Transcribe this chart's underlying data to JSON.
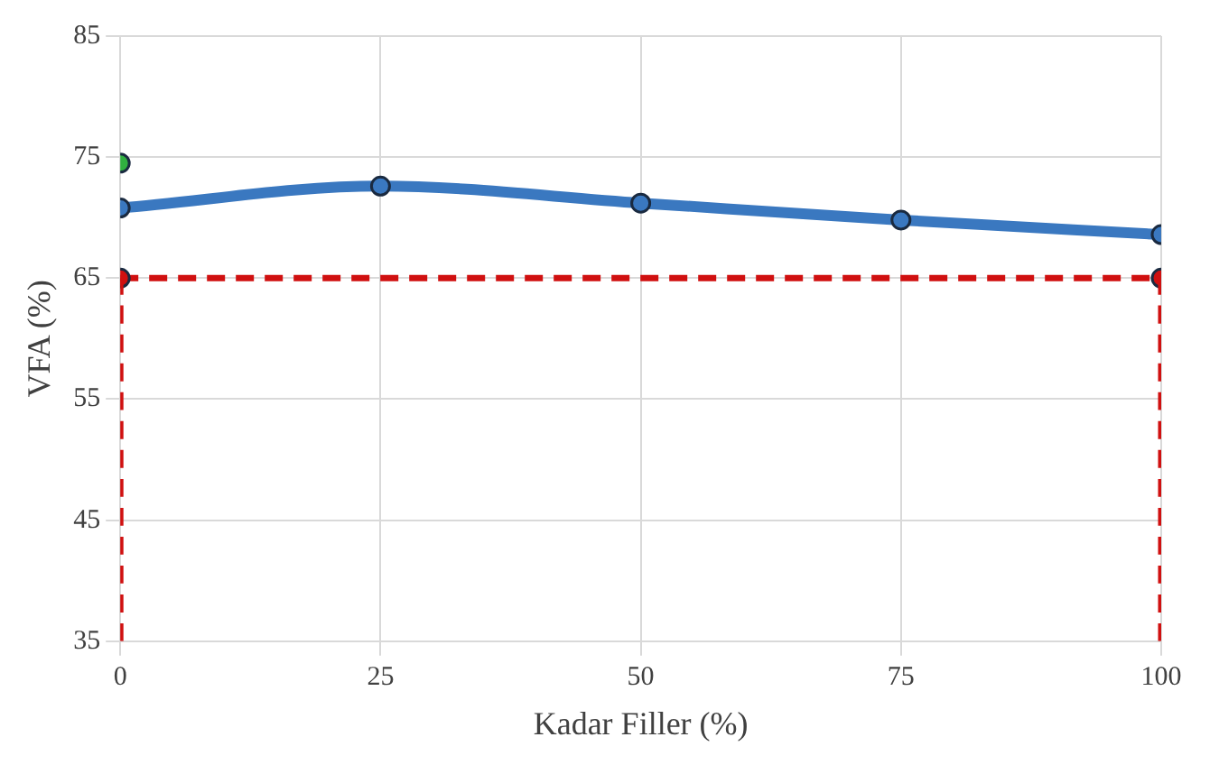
{
  "chart_data": {
    "type": "line",
    "xlabel": "Kadar Filler (%)",
    "ylabel": "VFA (%)",
    "xlim": [
      0,
      100
    ],
    "xticks": [
      0,
      25,
      50,
      75,
      100
    ],
    "ylim": [
      35,
      85
    ],
    "yticks": [
      35,
      45,
      55,
      65,
      75,
      85
    ],
    "grid": true,
    "legend": false,
    "series": [
      {
        "color": "#3a78c0",
        "x": [
          0,
          25,
          50,
          75,
          100
        ],
        "values": [
          70.8,
          72.6,
          71.2,
          69.8,
          68.6
        ],
        "marker": "circle",
        "line_style": "solid"
      },
      {
        "color": "#d01010",
        "x": [
          0,
          100
        ],
        "values": [
          65,
          65
        ],
        "marker": "circle",
        "line_style": "dashed"
      },
      {
        "color": "#d01010",
        "x": [
          0,
          0
        ],
        "values": [
          35,
          65
        ],
        "marker": "none",
        "line_style": "dashed"
      },
      {
        "color": "#d01010",
        "x": [
          100,
          100
        ],
        "values": [
          35,
          65
        ],
        "marker": "none",
        "line_style": "dashed"
      },
      {
        "type": "scatter",
        "color": "#30b040",
        "x": [
          0
        ],
        "values": [
          74.5
        ],
        "marker": "circle"
      }
    ]
  }
}
